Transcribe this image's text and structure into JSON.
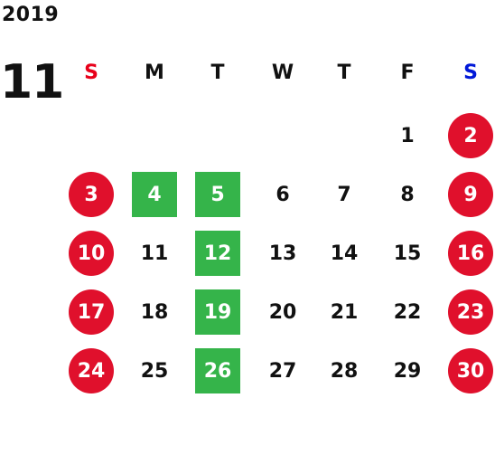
{
  "calendar": {
    "year": "2019",
    "month": "11",
    "weekdays": [
      "S",
      "M",
      "T",
      "W",
      "T",
      "F",
      "S"
    ],
    "weekday_colors": [
      "#e8001a",
      "#111111",
      "#111111",
      "#111111",
      "#111111",
      "#111111",
      "#0018d8"
    ],
    "colors": {
      "holiday_circle": "#e0102c",
      "marked_square": "#35b44a",
      "text": "#111111"
    },
    "weeks": [
      [
        {
          "day": "",
          "style": "none"
        },
        {
          "day": "",
          "style": "none"
        },
        {
          "day": "",
          "style": "none"
        },
        {
          "day": "",
          "style": "none"
        },
        {
          "day": "",
          "style": "none"
        },
        {
          "day": "1",
          "style": "plain"
        },
        {
          "day": "2",
          "style": "holiday"
        }
      ],
      [
        {
          "day": "3",
          "style": "holiday"
        },
        {
          "day": "4",
          "style": "marked"
        },
        {
          "day": "5",
          "style": "marked"
        },
        {
          "day": "6",
          "style": "plain"
        },
        {
          "day": "7",
          "style": "plain"
        },
        {
          "day": "8",
          "style": "plain"
        },
        {
          "day": "9",
          "style": "holiday"
        }
      ],
      [
        {
          "day": "10",
          "style": "holiday"
        },
        {
          "day": "11",
          "style": "plain"
        },
        {
          "day": "12",
          "style": "marked"
        },
        {
          "day": "13",
          "style": "plain"
        },
        {
          "day": "14",
          "style": "plain"
        },
        {
          "day": "15",
          "style": "plain"
        },
        {
          "day": "16",
          "style": "holiday"
        }
      ],
      [
        {
          "day": "17",
          "style": "holiday"
        },
        {
          "day": "18",
          "style": "plain"
        },
        {
          "day": "19",
          "style": "marked"
        },
        {
          "day": "20",
          "style": "plain"
        },
        {
          "day": "21",
          "style": "plain"
        },
        {
          "day": "22",
          "style": "plain"
        },
        {
          "day": "23",
          "style": "holiday"
        }
      ],
      [
        {
          "day": "24",
          "style": "holiday"
        },
        {
          "day": "25",
          "style": "plain"
        },
        {
          "day": "26",
          "style": "marked"
        },
        {
          "day": "27",
          "style": "plain"
        },
        {
          "day": "28",
          "style": "plain"
        },
        {
          "day": "29",
          "style": "plain"
        },
        {
          "day": "30",
          "style": "holiday"
        }
      ]
    ]
  }
}
